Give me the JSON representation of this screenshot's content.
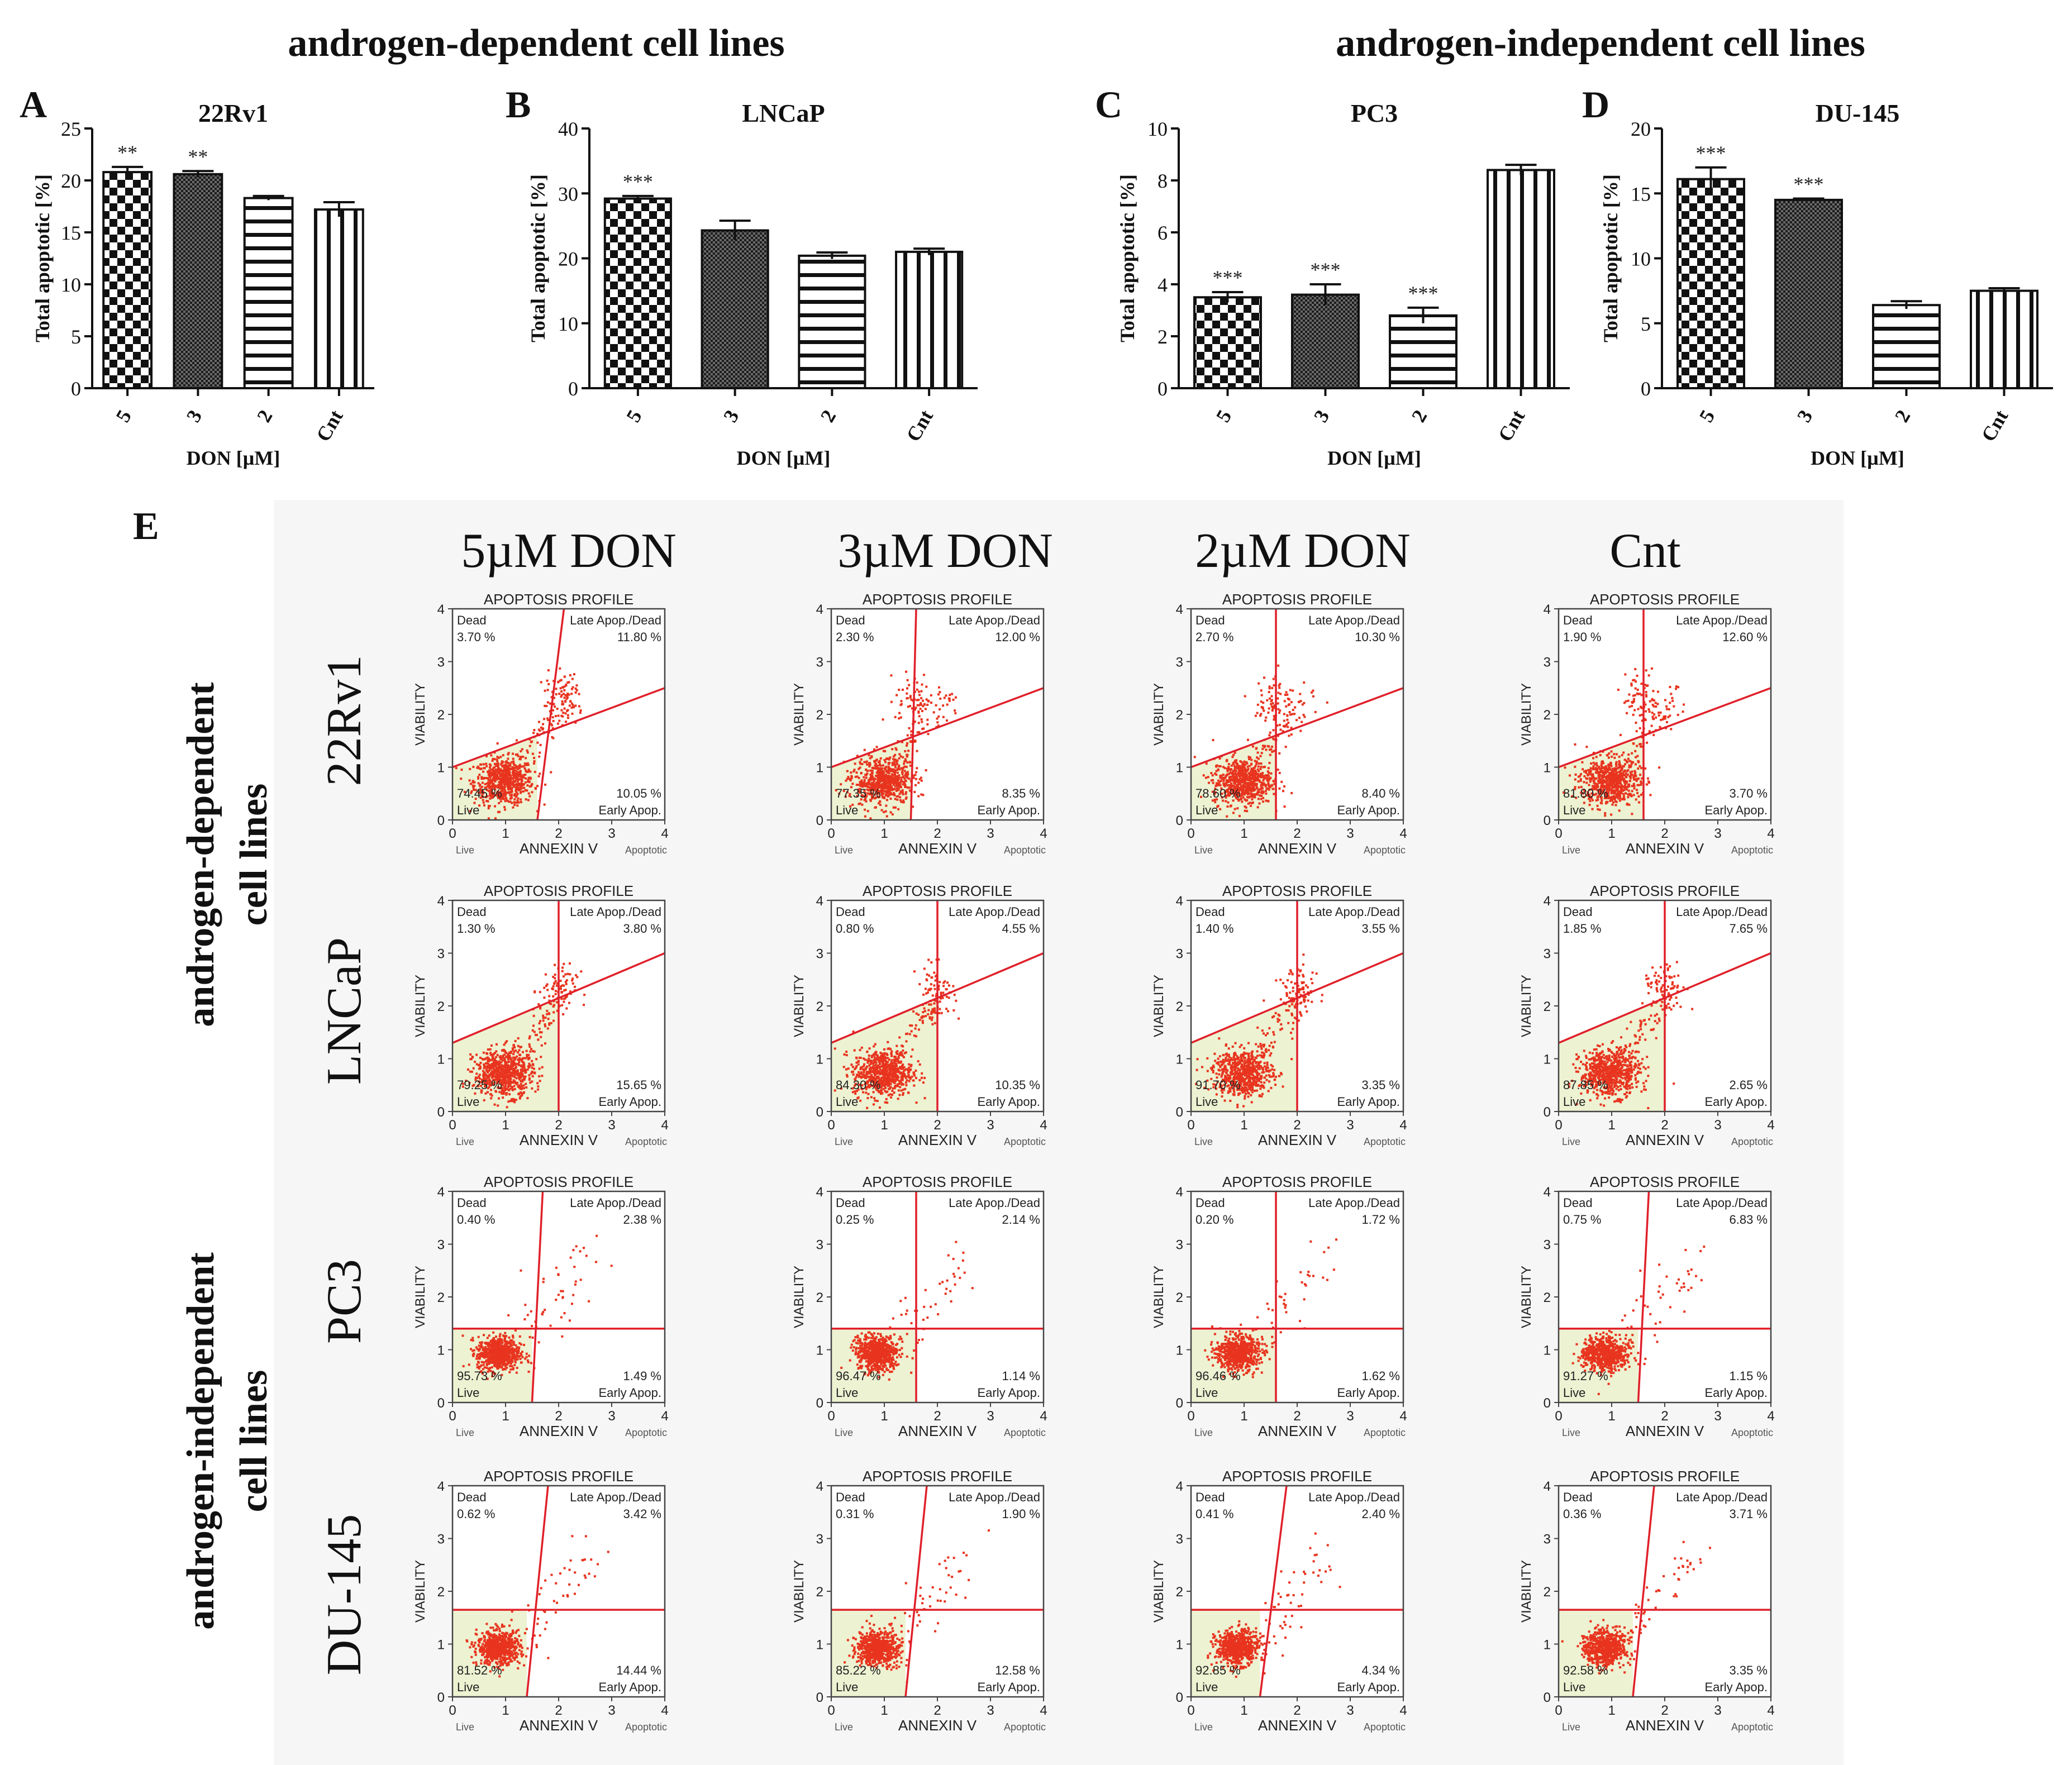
{
  "header": {
    "left_group": "androgen-dependent cell lines",
    "right_group": "androgen-independent cell lines"
  },
  "bar_charts": {
    "ylabel": "Total apoptotic [%]",
    "xlabel": "DON [µM]",
    "categories": [
      "5",
      "3",
      "2",
      "Cnt"
    ]
  },
  "panel_e": {
    "letter": "E",
    "columns": [
      "5µM DON",
      "3µM DON",
      "2µM DON",
      "Cnt"
    ],
    "rows": [
      "22Rv1",
      "LNCaP",
      "PC3",
      "DU-145"
    ],
    "group_labels": {
      "dependent_line1": "androgen-dependent",
      "dependent_line2": "cell lines",
      "independent_line1": "androgen-independent",
      "independent_line2": "cell lines"
    },
    "plot_text": {
      "title": "APOPTOSIS PROFILE",
      "dead": "Dead",
      "late": "Late Apop./Dead",
      "live": "Live",
      "early": "Early Apop.",
      "ylabel": "VIABILITY",
      "xlabel": "ANNEXIN V",
      "x_live": "Live",
      "x_apoptotic": "Apoptotic",
      "ticks": [
        "0",
        "1",
        "2",
        "3",
        "4"
      ]
    }
  },
  "colors": {
    "dot": "#e8341f",
    "gate_line": "#e0202a",
    "live_fill": "#edf2d2",
    "ink": "#111111",
    "panel_bg": "#f6f6f6"
  },
  "chart_data": [
    {
      "type": "bar",
      "panel": "A",
      "title": "22Rv1",
      "categories": [
        "5",
        "3",
        "2",
        "Cnt"
      ],
      "values": [
        20.8,
        20.6,
        18.3,
        17.2
      ],
      "errors": [
        0.5,
        0.3,
        0.2,
        0.7
      ],
      "significance": [
        "**",
        "**",
        "",
        ""
      ],
      "ylim": [
        0,
        25
      ],
      "yticks": [
        "0",
        "5",
        "10",
        "15",
        "20",
        "25"
      ],
      "ylabel": "Total apoptotic [%]",
      "xlabel": "DON [µM]"
    },
    {
      "type": "bar",
      "panel": "B",
      "title": "LNCaP",
      "categories": [
        "5",
        "3",
        "2",
        "Cnt"
      ],
      "values": [
        29.2,
        24.3,
        20.4,
        21.0
      ],
      "errors": [
        0.4,
        1.5,
        0.5,
        0.5
      ],
      "significance": [
        "***",
        "",
        "",
        ""
      ],
      "ylim": [
        0,
        40
      ],
      "yticks": [
        "0",
        "10",
        "20",
        "30",
        "40"
      ],
      "ylabel": "Total apoptotic [%]",
      "xlabel": "DON [µM]"
    },
    {
      "type": "bar",
      "panel": "C",
      "title": "PC3",
      "categories": [
        "5",
        "3",
        "2",
        "Cnt"
      ],
      "values": [
        3.5,
        3.6,
        2.8,
        8.4
      ],
      "errors": [
        0.2,
        0.4,
        0.3,
        0.2
      ],
      "significance": [
        "***",
        "***",
        "***",
        ""
      ],
      "ylim": [
        0,
        10
      ],
      "yticks": [
        "0",
        "2",
        "4",
        "6",
        "8",
        "10"
      ],
      "ylabel": "Total apoptotic [%]",
      "xlabel": "DON [µM]"
    },
    {
      "type": "bar",
      "panel": "D",
      "title": "DU-145",
      "categories": [
        "5",
        "3",
        "2",
        "Cnt"
      ],
      "values": [
        16.1,
        14.5,
        6.4,
        7.5
      ],
      "errors": [
        0.9,
        0.1,
        0.3,
        0.2
      ],
      "significance": [
        "***",
        "***",
        "",
        ""
      ],
      "ylim": [
        0,
        20
      ],
      "yticks": [
        "0",
        "5",
        "10",
        "15",
        "20"
      ],
      "ylabel": "Total apoptotic [%]",
      "xlabel": "DON [µM]"
    },
    {
      "type": "scatter",
      "panel": "E",
      "title": "APOPTOSIS PROFILE",
      "xlabel": "ANNEXIN V",
      "ylabel": "VIABILITY",
      "xlim": [
        0,
        4
      ],
      "ylim": [
        0,
        4
      ],
      "quadrant_labels": [
        "Dead",
        "Late Apop./Dead",
        "Live",
        "Early Apop."
      ],
      "rows": [
        "22Rv1",
        "LNCaP",
        "PC3",
        "DU-145"
      ],
      "columns": [
        "5µM DON",
        "3µM DON",
        "2µM DON",
        "Cnt"
      ],
      "plots": [
        {
          "row": "22Rv1",
          "column": "5µM DON",
          "dead": "3.70 %",
          "late": "11.80 %",
          "live": "74.45 %",
          "early": "10.05 %",
          "vline": [
            1.6,
            2.1
          ],
          "gate": [
            1.0,
            2.5
          ],
          "gate_type": "diagonal"
        },
        {
          "row": "22Rv1",
          "column": "3µM DON",
          "dead": "2.30 %",
          "late": "12.00 %",
          "live": "77.35 %",
          "early": "8.35 %",
          "vline": [
            1.5,
            1.6
          ],
          "gate": [
            1.0,
            2.5
          ],
          "gate_type": "diagonal"
        },
        {
          "row": "22Rv1",
          "column": "2µM DON",
          "dead": "2.70 %",
          "late": "10.30 %",
          "live": "78.60 %",
          "early": "8.40 %",
          "vline": [
            1.6,
            1.6
          ],
          "gate": [
            1.0,
            2.5
          ],
          "gate_type": "diagonal"
        },
        {
          "row": "22Rv1",
          "column": "Cnt",
          "dead": "1.90 %",
          "late": "12.60 %",
          "live": "81.80 %",
          "early": "3.70 %",
          "vline": [
            1.6,
            1.6
          ],
          "gate": [
            1.0,
            2.5
          ],
          "gate_type": "diagonal"
        },
        {
          "row": "LNCaP",
          "column": "5µM DON",
          "dead": "1.30 %",
          "late": "3.80 %",
          "live": "79.25 %",
          "early": "15.65 %",
          "vline": [
            2.0,
            2.0
          ],
          "gate": [
            1.3,
            3.0
          ],
          "gate_type": "diagonal"
        },
        {
          "row": "LNCaP",
          "column": "3µM DON",
          "dead": "0.80 %",
          "late": "4.55 %",
          "live": "84.30 %",
          "early": "10.35 %",
          "vline": [
            2.0,
            2.0
          ],
          "gate": [
            1.3,
            3.0
          ],
          "gate_type": "diagonal"
        },
        {
          "row": "LNCaP",
          "column": "2µM DON",
          "dead": "1.40 %",
          "late": "3.55 %",
          "live": "91.70 %",
          "early": "3.35 %",
          "vline": [
            2.0,
            2.0
          ],
          "gate": [
            1.3,
            3.0
          ],
          "gate_type": "diagonal"
        },
        {
          "row": "LNCaP",
          "column": "Cnt",
          "dead": "1.85 %",
          "late": "7.65 %",
          "live": "87.85 %",
          "early": "2.65 %",
          "vline": [
            2.0,
            2.0
          ],
          "gate": [
            1.3,
            3.0
          ],
          "gate_type": "diagonal"
        },
        {
          "row": "PC3",
          "column": "5µM DON",
          "dead": "0.40 %",
          "late": "2.38 %",
          "live": "95.73 %",
          "early": "1.49 %",
          "vline": [
            1.5,
            1.7
          ],
          "gate": [
            1.4,
            1.4
          ],
          "gate_type": "flat"
        },
        {
          "row": "PC3",
          "column": "3µM DON",
          "dead": "0.25 %",
          "late": "2.14 %",
          "live": "96.47 %",
          "early": "1.14 %",
          "vline": [
            1.6,
            1.6
          ],
          "gate": [
            1.4,
            1.4
          ],
          "gate_type": "flat"
        },
        {
          "row": "PC3",
          "column": "2µM DON",
          "dead": "0.20 %",
          "late": "1.72 %",
          "live": "96.46 %",
          "early": "1.62 %",
          "vline": [
            1.6,
            1.6
          ],
          "gate": [
            1.4,
            1.4
          ],
          "gate_type": "flat"
        },
        {
          "row": "PC3",
          "column": "Cnt",
          "dead": "0.75 %",
          "late": "6.83 %",
          "live": "91.27 %",
          "early": "1.15 %",
          "vline": [
            1.5,
            1.7
          ],
          "gate": [
            1.4,
            1.4
          ],
          "gate_type": "flat"
        },
        {
          "row": "DU-145",
          "column": "5µM DON",
          "dead": "0.62 %",
          "late": "3.42 %",
          "live": "81.52 %",
          "early": "14.44 %",
          "vline": [
            1.4,
            1.8
          ],
          "gate": [
            1.65,
            1.65
          ],
          "gate_type": "flat"
        },
        {
          "row": "DU-145",
          "column": "3µM DON",
          "dead": "0.31 %",
          "late": "1.90 %",
          "live": "85.22 %",
          "early": "12.58 %",
          "vline": [
            1.4,
            1.8
          ],
          "gate": [
            1.65,
            1.65
          ],
          "gate_type": "flat"
        },
        {
          "row": "DU-145",
          "column": "2µM DON",
          "dead": "0.41 %",
          "late": "2.40 %",
          "live": "92.85 %",
          "early": "4.34 %",
          "vline": [
            1.3,
            1.8
          ],
          "gate": [
            1.65,
            1.65
          ],
          "gate_type": "flat"
        },
        {
          "row": "DU-145",
          "column": "Cnt",
          "dead": "0.36 %",
          "late": "3.71 %",
          "live": "92.58 %",
          "early": "3.35 %",
          "vline": [
            1.4,
            1.8
          ],
          "gate": [
            1.65,
            1.65
          ],
          "gate_type": "flat"
        }
      ]
    }
  ]
}
